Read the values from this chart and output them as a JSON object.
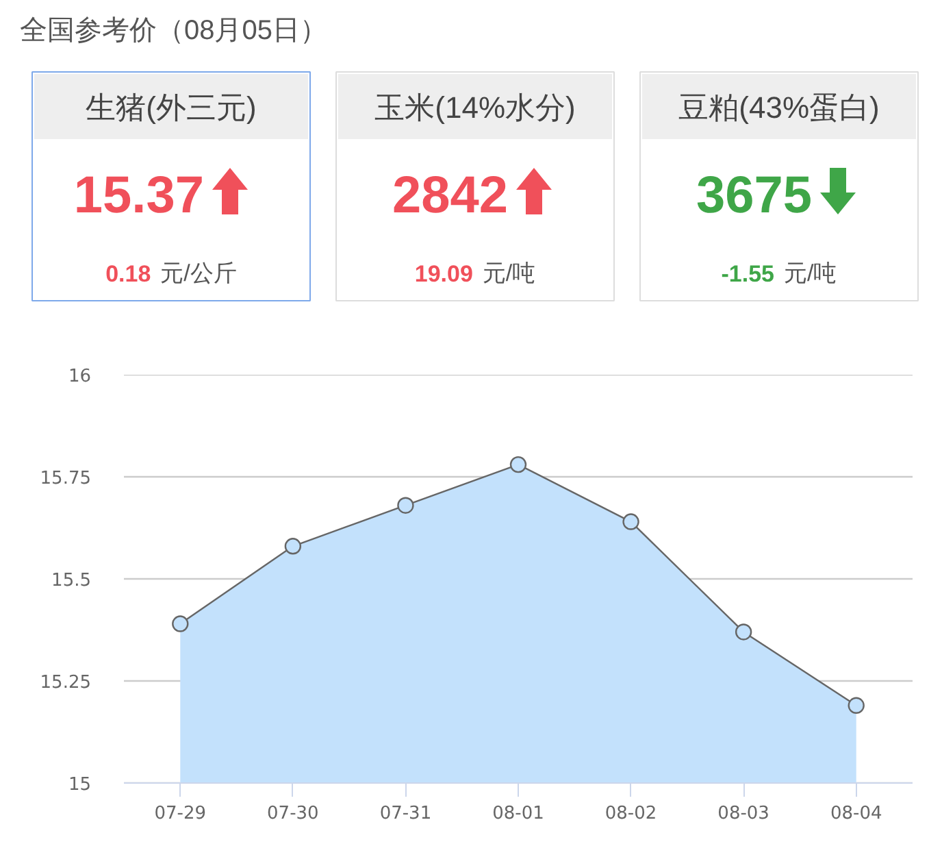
{
  "chart_data": [
    {
      "type": "other",
      "title": "全国参考价（08月05日）",
      "categories": [
        "生猪(外三元)",
        "玉米(14%水分)",
        "豆粕(43%蛋白)"
      ],
      "series": [
        {
          "values": [
            15.37,
            2842,
            3675
          ],
          "colors": [
            "#f0505a",
            "#f0505a",
            "#3fa648"
          ]
        },
        {
          "values": [
            0.18,
            19.09,
            -1.55
          ],
          "colors": [
            "#f0505a",
            "#f0505a",
            "#3fa648"
          ]
        }
      ],
      "data_labels": true,
      "annotations": [
        "元/公斤",
        "元/吨",
        "元/吨"
      ]
    },
    {
      "type": "area",
      "categories": [
        "07-29",
        "07-30",
        "07-31",
        "08-01",
        "08-02",
        "08-03",
        "08-04"
      ],
      "values": [
        15.39,
        15.58,
        15.68,
        15.78,
        15.64,
        15.37,
        15.19
      ],
      "color": "#c3e1fc",
      "ylim": [
        15,
        16
      ],
      "yticks": [
        15,
        15.25,
        15.5,
        15.75,
        16
      ],
      "grid": "y",
      "marker": "circle"
    }
  ]
}
